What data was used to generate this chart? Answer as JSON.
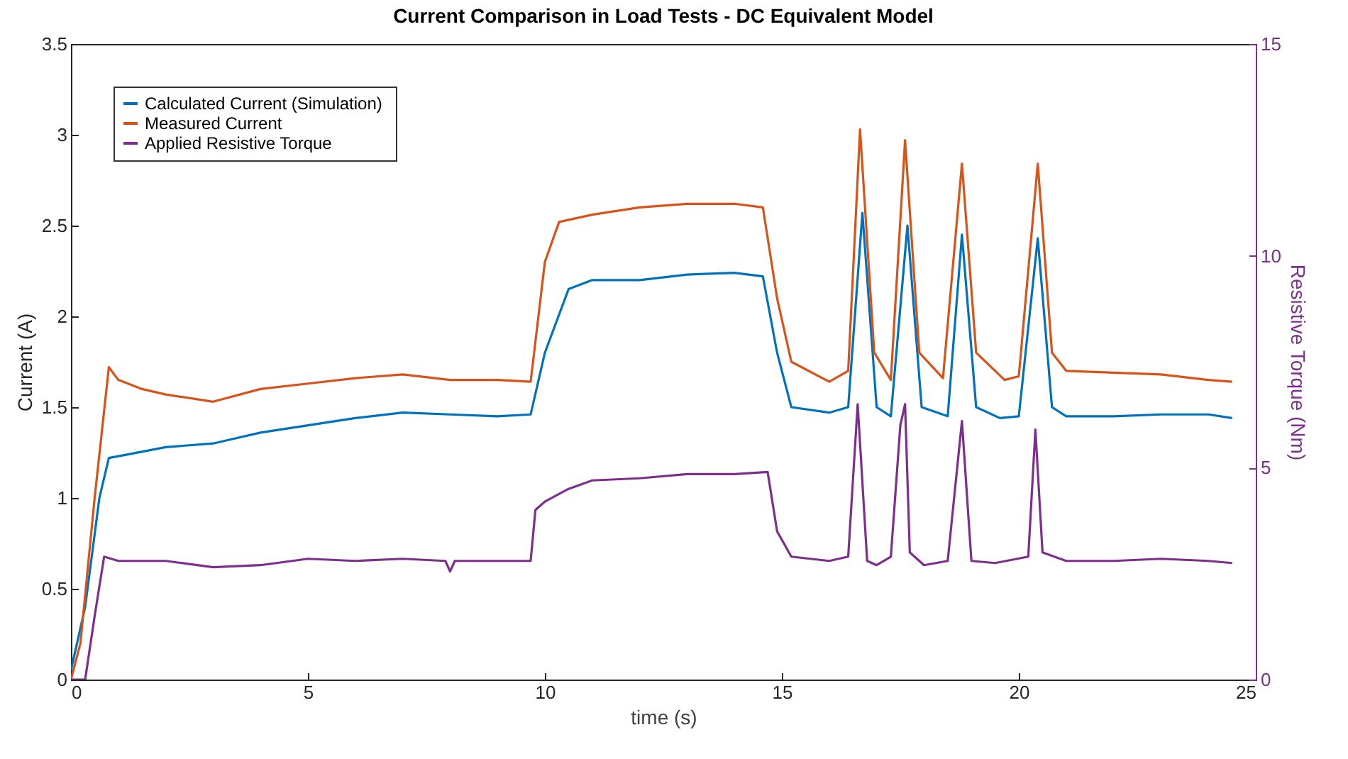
{
  "chart_data": {
    "type": "line",
    "title": "Current Comparison in Load Tests - DC Equivalent Model",
    "xlabel": "time (s)",
    "ylabel": "Current (A)",
    "y2label": "Resistive Torque (Nm)",
    "xlim": [
      0,
      25
    ],
    "xticks": [
      0,
      5,
      10,
      15,
      20,
      25
    ],
    "ylim": [
      0,
      3.5
    ],
    "yticks": [
      0,
      0.5,
      1,
      1.5,
      2,
      2.5,
      3,
      3.5
    ],
    "y2lim": [
      0,
      15
    ],
    "y2ticks": [
      0,
      5,
      10,
      15
    ],
    "legend": "top left",
    "grid": false,
    "marker": "none",
    "line_style": "solid",
    "series": [
      {
        "name": "Calculated Current  (Simulation)",
        "color": "#0072bd",
        "x": [
          0,
          0.3,
          0.6,
          0.8,
          1.2,
          2,
          3,
          3.5,
          4,
          5,
          6,
          7,
          8,
          9,
          9.7,
          10,
          10.5,
          11,
          12,
          13,
          14,
          14.6,
          14.9,
          15.2,
          16,
          16.4,
          16.7,
          17,
          17.3,
          17.65,
          17.95,
          18.5,
          18.8,
          19.1,
          19.6,
          20,
          20.4,
          20.7,
          21,
          22,
          23,
          24,
          24.5
        ],
        "values": [
          0.05,
          0.4,
          1.0,
          1.22,
          1.24,
          1.28,
          1.3,
          1.33,
          1.36,
          1.4,
          1.44,
          1.47,
          1.46,
          1.45,
          1.46,
          1.8,
          2.15,
          2.2,
          2.2,
          2.23,
          2.24,
          2.22,
          1.8,
          1.5,
          1.47,
          1.5,
          2.57,
          1.5,
          1.45,
          2.5,
          1.5,
          1.45,
          2.45,
          1.5,
          1.44,
          1.45,
          2.43,
          1.5,
          1.45,
          1.45,
          1.46,
          1.46,
          1.44
        ]
      },
      {
        "name": "Measured Current",
        "color": "#d95319",
        "x": [
          0,
          0.2,
          0.5,
          0.8,
          1,
          1.5,
          2,
          3,
          4,
          5,
          6,
          7,
          8,
          9,
          9.7,
          10,
          10.3,
          11,
          12,
          13,
          14,
          14.6,
          14.9,
          15.2,
          16,
          16.4,
          16.65,
          16.95,
          17.3,
          17.6,
          17.9,
          18.4,
          18.8,
          19.1,
          19.7,
          20,
          20.4,
          20.7,
          21,
          22,
          23,
          24,
          24.5
        ],
        "values": [
          0,
          0.2,
          1.0,
          1.72,
          1.65,
          1.6,
          1.57,
          1.53,
          1.6,
          1.63,
          1.66,
          1.68,
          1.65,
          1.65,
          1.64,
          2.3,
          2.52,
          2.56,
          2.6,
          2.62,
          2.62,
          2.6,
          2.1,
          1.75,
          1.64,
          1.7,
          3.03,
          1.8,
          1.65,
          2.97,
          1.8,
          1.66,
          2.84,
          1.8,
          1.65,
          1.67,
          2.84,
          1.8,
          1.7,
          1.69,
          1.68,
          1.65,
          1.64
        ]
      },
      {
        "name": "Applied Resistive Torque",
        "color": "#7e2f8e",
        "axis": "y2",
        "x": [
          0,
          0.3,
          0.5,
          0.7,
          1,
          2,
          3,
          4,
          5,
          6,
          7,
          7.9,
          8,
          8.1,
          9,
          9.7,
          9.8,
          10,
          10.5,
          11,
          12,
          13,
          14,
          14.7,
          14.9,
          15.2,
          16,
          16.4,
          16.6,
          16.8,
          17,
          17.3,
          17.5,
          17.6,
          17.7,
          18,
          18.5,
          18.8,
          19,
          19.5,
          20.2,
          20.35,
          20.5,
          21,
          22,
          23,
          24,
          24.5
        ],
        "values": [
          0,
          0,
          1.5,
          2.9,
          2.8,
          2.8,
          2.65,
          2.7,
          2.85,
          2.8,
          2.85,
          2.8,
          2.55,
          2.8,
          2.8,
          2.8,
          4.0,
          4.2,
          4.5,
          4.7,
          4.75,
          4.85,
          4.85,
          4.9,
          3.5,
          2.9,
          2.8,
          2.9,
          6.5,
          2.8,
          2.7,
          2.9,
          6.0,
          6.5,
          3.0,
          2.7,
          2.8,
          6.1,
          2.8,
          2.75,
          2.9,
          5.9,
          3.0,
          2.8,
          2.8,
          2.85,
          2.8,
          2.75
        ]
      }
    ]
  }
}
